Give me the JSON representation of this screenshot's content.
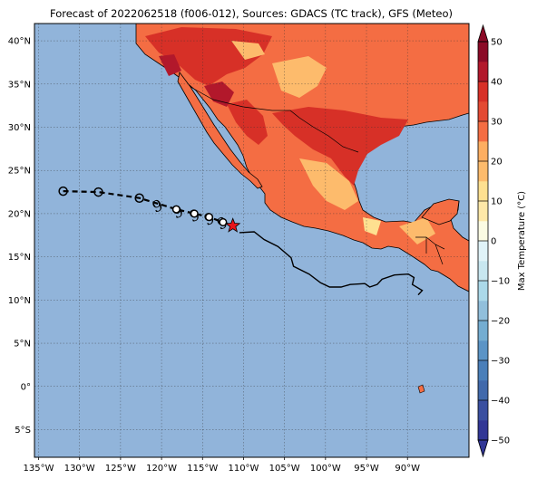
{
  "title": "Forecast of 2022062518 (f006-012), Sources: GDACS (TC track), GFS (Meteo)",
  "map": {
    "lon_range": [
      -135.5,
      -82.5
    ],
    "lat_range": [
      -8.2,
      42
    ],
    "lon_ticks": [
      {
        "value": -135,
        "label": "135°W"
      },
      {
        "value": -130,
        "label": "130°W"
      },
      {
        "value": -125,
        "label": "125°W"
      },
      {
        "value": -120,
        "label": "120°W"
      },
      {
        "value": -115,
        "label": "115°W"
      },
      {
        "value": -110,
        "label": "110°W"
      },
      {
        "value": -105,
        "label": "105°W"
      },
      {
        "value": -100,
        "label": "100°W"
      },
      {
        "value": -95,
        "label": "95°W"
      },
      {
        "value": -90,
        "label": "90°W"
      }
    ],
    "lat_ticks": [
      {
        "value": 40,
        "label": "40°N"
      },
      {
        "value": 35,
        "label": "35°N"
      },
      {
        "value": 30,
        "label": "30°N"
      },
      {
        "value": 25,
        "label": "25°N"
      },
      {
        "value": 20,
        "label": "20°N"
      },
      {
        "value": 15,
        "label": "15°N"
      },
      {
        "value": 10,
        "label": "10°N"
      },
      {
        "value": 5,
        "label": "5°N"
      },
      {
        "value": 0,
        "label": "0°"
      },
      {
        "value": -5,
        "label": "5°S"
      }
    ],
    "grid": true,
    "ocean_color": "#91b4da"
  },
  "track": {
    "points": [
      {
        "lon": -132,
        "lat": 22.6,
        "marker": "open-circle"
      },
      {
        "lon": -127.7,
        "lat": 22.5,
        "marker": "open-circle"
      },
      {
        "lon": -122.7,
        "lat": 21.8,
        "marker": "open-circle"
      },
      {
        "lon": -118.2,
        "lat": 20.5,
        "marker": "filled-white-circle"
      },
      {
        "lon": -116,
        "lat": 20.0,
        "marker": "filled-white-circle"
      },
      {
        "lon": -114.2,
        "lat": 19.6,
        "marker": "filled-white-circle"
      },
      {
        "lon": -112.5,
        "lat": 19.0,
        "marker": "filled-white-circle"
      }
    ],
    "current_position": {
      "lon": -111.3,
      "lat": 18.6,
      "marker": "red-star"
    },
    "cyclone_symbols": [
      {
        "lon": -120.5,
        "lat": 20.9
      },
      {
        "lon": -118.0,
        "lat": 20.2
      },
      {
        "lon": -116.0,
        "lat": 19.8
      },
      {
        "lon": -114.2,
        "lat": 19.4
      },
      {
        "lon": -112.6,
        "lat": 18.9
      }
    ],
    "cyclone_icon": "tropical-storm-icon",
    "cone_boundary": [
      [
        -110.5,
        17.8
      ],
      [
        -108.7,
        17.9
      ],
      [
        -107.5,
        17.0
      ],
      [
        -105.8,
        16.2
      ],
      [
        -104.2,
        14.9
      ],
      [
        -103.9,
        13.9
      ],
      [
        -102,
        13.0
      ],
      [
        -100.6,
        12.0
      ],
      [
        -99.5,
        11.5
      ],
      [
        -98.1,
        11.5
      ],
      [
        -97,
        11.8
      ],
      [
        -95.2,
        11.9
      ],
      [
        -94.6,
        11.5
      ],
      [
        -93.7,
        11.8
      ],
      [
        -93.1,
        12.4
      ],
      [
        -91.6,
        12.9
      ],
      [
        -89.9,
        13.0
      ],
      [
        -89.2,
        12.6
      ],
      [
        -89.4,
        11.8
      ],
      [
        -88.2,
        11.1
      ],
      [
        -88.7,
        10.6
      ]
    ]
  },
  "colorbar": {
    "label": "Max Temperature (°C)",
    "ticks": [
      {
        "value": 50,
        "label": "50"
      },
      {
        "value": 40,
        "label": "40"
      },
      {
        "value": 30,
        "label": "30"
      },
      {
        "value": 20,
        "label": "20"
      },
      {
        "value": 10,
        "label": "10"
      },
      {
        "value": 0,
        "label": "0"
      },
      {
        "value": -10,
        "label": "−10"
      },
      {
        "value": -20,
        "label": "−20"
      },
      {
        "value": -30,
        "label": "−30"
      },
      {
        "value": -40,
        "label": "−40"
      },
      {
        "value": -50,
        "label": "−50"
      }
    ],
    "levels": [
      {
        "from": -50,
        "to": -45,
        "color": "#313695"
      },
      {
        "from": -45,
        "to": -40,
        "color": "#3a4fa0"
      },
      {
        "from": -40,
        "to": -35,
        "color": "#4169ab"
      },
      {
        "from": -35,
        "to": -30,
        "color": "#4a7fb9"
      },
      {
        "from": -30,
        "to": -25,
        "color": "#5b94c6"
      },
      {
        "from": -25,
        "to": -20,
        "color": "#74add1"
      },
      {
        "from": -20,
        "to": -15,
        "color": "#91bfdb"
      },
      {
        "from": -15,
        "to": -10,
        "color": "#abd9e9"
      },
      {
        "from": -10,
        "to": -5,
        "color": "#c8e7f0"
      },
      {
        "from": -5,
        "to": 0,
        "color": "#e0f3f8"
      },
      {
        "from": 0,
        "to": 5,
        "color": "#fbfbe3"
      },
      {
        "from": 5,
        "to": 10,
        "color": "#fee8a8"
      },
      {
        "from": 10,
        "to": 15,
        "color": "#fee090"
      },
      {
        "from": 15,
        "to": 20,
        "color": "#fdbb6c"
      },
      {
        "from": 20,
        "to": 25,
        "color": "#fdae61"
      },
      {
        "from": 25,
        "to": 30,
        "color": "#f46d43"
      },
      {
        "from": 30,
        "to": 35,
        "color": "#e34a33"
      },
      {
        "from": 35,
        "to": 40,
        "color": "#d73027"
      },
      {
        "from": 40,
        "to": 45,
        "color": "#b2182b"
      },
      {
        "from": 45,
        "to": 50,
        "color": "#8b0a26"
      }
    ],
    "extend": "both"
  }
}
